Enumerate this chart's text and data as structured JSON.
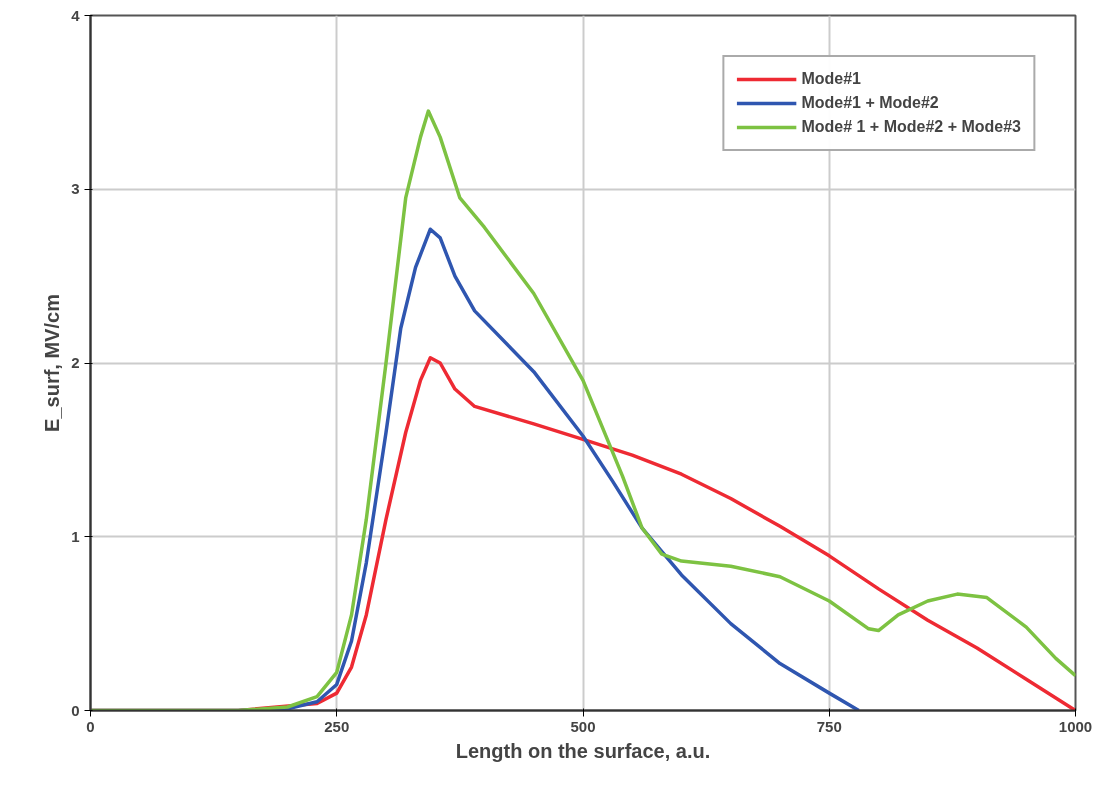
{
  "chart_data": {
    "type": "line",
    "xlabel": "Length on the surface, a.u.",
    "ylabel": "E_surf, MV/cm",
    "xlim": [
      0,
      1000
    ],
    "ylim": [
      0,
      4
    ],
    "xticks": [
      0,
      250,
      500,
      750,
      1000
    ],
    "yticks": [
      0,
      1,
      2,
      3,
      4
    ],
    "grid": true,
    "legend": "top right",
    "marker": "none",
    "line_style": "solid",
    "series": [
      {
        "name": "Mode#1",
        "color": "#ee2a33",
        "x": [
          0,
          150,
          230,
          250,
          265,
          280,
          300,
          320,
          335,
          345,
          355,
          370,
          390,
          450,
          500,
          550,
          600,
          650,
          700,
          750,
          800,
          850,
          900,
          950,
          1000
        ],
        "values": [
          0,
          0,
          0.04,
          0.1,
          0.25,
          0.55,
          1.1,
          1.6,
          1.9,
          2.03,
          2.0,
          1.85,
          1.75,
          1.65,
          1.56,
          1.47,
          1.36,
          1.22,
          1.06,
          0.89,
          0.7,
          0.52,
          0.36,
          0.18,
          0
        ]
      },
      {
        "name": "Mode#1 + Mode#2",
        "color": "#2f56b0",
        "x": [
          0,
          150,
          200,
          230,
          250,
          265,
          280,
          300,
          315,
          330,
          345,
          355,
          370,
          390,
          450,
          500,
          530,
          560,
          600,
          650,
          700,
          750,
          780
        ],
        "values": [
          0,
          0,
          0.01,
          0.05,
          0.15,
          0.4,
          0.85,
          1.6,
          2.2,
          2.55,
          2.77,
          2.72,
          2.5,
          2.3,
          1.95,
          1.58,
          1.32,
          1.05,
          0.78,
          0.5,
          0.27,
          0.1,
          0
        ]
      },
      {
        "name": "Mode# 1 + Mode#2 + Mode#3",
        "color": "#7dc242",
        "x": [
          0,
          150,
          200,
          230,
          250,
          265,
          280,
          300,
          320,
          335,
          343,
          355,
          375,
          400,
          450,
          500,
          540,
          560,
          580,
          600,
          650,
          700,
          750,
          790,
          800,
          820,
          850,
          880,
          910,
          950,
          980,
          1000
        ],
        "values": [
          0,
          0,
          0.02,
          0.08,
          0.22,
          0.55,
          1.1,
          2.0,
          2.95,
          3.3,
          3.45,
          3.3,
          2.95,
          2.78,
          2.4,
          1.9,
          1.35,
          1.05,
          0.9,
          0.86,
          0.83,
          0.77,
          0.63,
          0.47,
          0.46,
          0.55,
          0.63,
          0.67,
          0.65,
          0.48,
          0.3,
          0.2
        ]
      }
    ]
  }
}
